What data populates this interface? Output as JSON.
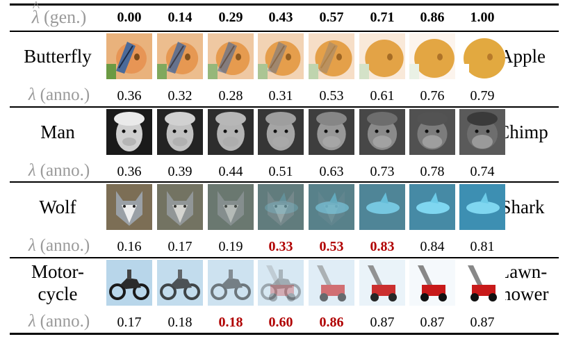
{
  "header": {
    "label_symbol": "λ",
    "label_hat": "^",
    "label_text": "(gen.)",
    "gen_values": [
      "0.00",
      "0.14",
      "0.29",
      "0.43",
      "0.57",
      "0.71",
      "0.86",
      "1.00"
    ]
  },
  "anno_label": {
    "symbol": "λ",
    "text": "(anno.)"
  },
  "highlight_color": "#b00000",
  "rows": [
    {
      "left_label": [
        "Butterfly"
      ],
      "right_label": [
        "Apple"
      ],
      "theme": "butterfly-apple",
      "anno": [
        {
          "value": "0.36",
          "highlight": false
        },
        {
          "value": "0.32",
          "highlight": false
        },
        {
          "value": "0.28",
          "highlight": false
        },
        {
          "value": "0.31",
          "highlight": false
        },
        {
          "value": "0.53",
          "highlight": false
        },
        {
          "value": "0.61",
          "highlight": false
        },
        {
          "value": "0.76",
          "highlight": false
        },
        {
          "value": "0.79",
          "highlight": false
        }
      ]
    },
    {
      "left_label": [
        "Man"
      ],
      "right_label": [
        "Chimp"
      ],
      "theme": "man-chimp",
      "anno": [
        {
          "value": "0.36",
          "highlight": false
        },
        {
          "value": "0.39",
          "highlight": false
        },
        {
          "value": "0.44",
          "highlight": false
        },
        {
          "value": "0.51",
          "highlight": false
        },
        {
          "value": "0.63",
          "highlight": false
        },
        {
          "value": "0.73",
          "highlight": false
        },
        {
          "value": "0.78",
          "highlight": false
        },
        {
          "value": "0.74",
          "highlight": false
        }
      ]
    },
    {
      "left_label": [
        "Wolf"
      ],
      "right_label": [
        "Shark"
      ],
      "theme": "wolf-shark",
      "anno": [
        {
          "value": "0.16",
          "highlight": false
        },
        {
          "value": "0.17",
          "highlight": false
        },
        {
          "value": "0.19",
          "highlight": false
        },
        {
          "value": "0.33",
          "highlight": true
        },
        {
          "value": "0.53",
          "highlight": true
        },
        {
          "value": "0.83",
          "highlight": true
        },
        {
          "value": "0.84",
          "highlight": false
        },
        {
          "value": "0.81",
          "highlight": false
        }
      ]
    },
    {
      "left_label": [
        "Motor-",
        "cycle"
      ],
      "right_label": [
        "Lawn-",
        "mower"
      ],
      "theme": "motorcycle-lawnmower",
      "anno": [
        {
          "value": "0.17",
          "highlight": false
        },
        {
          "value": "0.18",
          "highlight": false
        },
        {
          "value": "0.18",
          "highlight": true
        },
        {
          "value": "0.60",
          "highlight": true
        },
        {
          "value": "0.86",
          "highlight": true
        },
        {
          "value": "0.87",
          "highlight": false
        },
        {
          "value": "0.87",
          "highlight": false
        },
        {
          "value": "0.87",
          "highlight": false
        }
      ]
    }
  ]
}
